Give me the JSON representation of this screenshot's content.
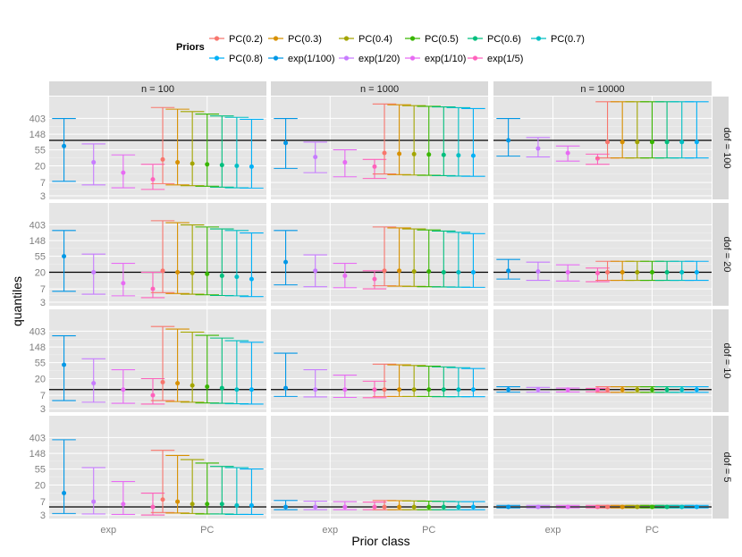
{
  "chart_data": {
    "type": "errorbar",
    "xlabel": "Prior class",
    "ylabel": "quantiles",
    "y_scale": "log",
    "ylim": [
      2.4,
      1600
    ],
    "y_ticks": [
      3,
      7,
      20,
      55,
      148,
      403
    ],
    "x_categories": [
      "exp",
      "PC"
    ],
    "col_facets": [
      "n = 100",
      "n = 1000",
      "n = 10000"
    ],
    "row_facets": [
      "dof = 100",
      "dof = 20",
      "dof = 10",
      "dof = 5"
    ],
    "true_values": [
      100,
      20,
      10,
      5
    ],
    "legend": {
      "title": "Priors",
      "entries": [
        {
          "label": "PC(0.2)",
          "color": "#F8766D"
        },
        {
          "label": "PC(0.3)",
          "color": "#D89000"
        },
        {
          "label": "PC(0.4)",
          "color": "#A3A500"
        },
        {
          "label": "PC(0.5)",
          "color": "#39B600"
        },
        {
          "label": "PC(0.6)",
          "color": "#00BF7D"
        },
        {
          "label": "PC(0.7)",
          "color": "#00BFC4"
        },
        {
          "label": "PC(0.8)",
          "color": "#00B0F6"
        },
        {
          "label": "exp(1/100)",
          "color": "#0097E6"
        },
        {
          "label": "exp(1/20)",
          "color": "#C77CFF"
        },
        {
          "label": "exp(1/10)",
          "color": "#E76BF3"
        },
        {
          "label": "exp(1/5)",
          "color": "#FF62BC"
        }
      ]
    },
    "series_order": [
      "exp(1/100)",
      "exp(1/20)",
      "exp(1/10)",
      "exp(1/5)",
      "PC(0.2)",
      "PC(0.3)",
      "PC(0.4)",
      "PC(0.5)",
      "PC(0.6)",
      "PC(0.7)",
      "PC(0.8)"
    ],
    "panels": [
      {
        "row": 0,
        "col": 0,
        "bars": [
          [
            7.5,
            70,
            400
          ],
          [
            6,
            25,
            80
          ],
          [
            5,
            13,
            40
          ],
          [
            4.5,
            8.5,
            22
          ],
          [
            6.5,
            30,
            800
          ],
          [
            6,
            25,
            720
          ],
          [
            5.7,
            23,
            620
          ],
          [
            5.5,
            22,
            530
          ],
          [
            5.2,
            21,
            470
          ],
          [
            5,
            20,
            430
          ],
          [
            4.9,
            19,
            380
          ]
        ]
      },
      {
        "row": 0,
        "col": 1,
        "bars": [
          [
            17,
            85,
            400
          ],
          [
            13,
            35,
            90
          ],
          [
            10,
            25,
            55
          ],
          [
            9,
            19,
            30
          ],
          [
            12,
            45,
            1000
          ],
          [
            11.5,
            43,
            950
          ],
          [
            11.2,
            42,
            900
          ],
          [
            11,
            41,
            860
          ],
          [
            10.8,
            40,
            830
          ],
          [
            10.5,
            39,
            790
          ],
          [
            10.3,
            38,
            750
          ]
        ]
      },
      {
        "row": 0,
        "col": 2,
        "bars": [
          [
            37,
            100,
            400
          ],
          [
            35,
            60,
            120
          ],
          [
            27,
            45,
            70
          ],
          [
            22,
            32,
            42
          ],
          [
            33,
            90,
            1150
          ],
          [
            33,
            90,
            1150
          ],
          [
            33,
            90,
            1150
          ],
          [
            33,
            90,
            1150
          ],
          [
            33,
            90,
            1150
          ],
          [
            33,
            90,
            1150
          ],
          [
            33,
            90,
            1150
          ]
        ]
      },
      {
        "row": 1,
        "col": 0,
        "bars": [
          [
            6,
            55,
            280
          ],
          [
            5,
            20,
            63
          ],
          [
            4.5,
            10,
            35
          ],
          [
            4,
            7,
            20
          ],
          [
            5.5,
            22,
            520
          ],
          [
            5.2,
            20,
            460
          ],
          [
            5,
            19,
            400
          ],
          [
            4.8,
            18,
            350
          ],
          [
            4.6,
            16,
            310
          ],
          [
            4.5,
            15,
            280
          ],
          [
            4.3,
            13,
            240
          ]
        ]
      },
      {
        "row": 1,
        "col": 1,
        "bars": [
          [
            9,
            38,
            280
          ],
          [
            8,
            22,
            60
          ],
          [
            7.5,
            16,
            35
          ],
          [
            7,
            13,
            22
          ],
          [
            8.5,
            22,
            350
          ],
          [
            8.3,
            22,
            330
          ],
          [
            8.2,
            21,
            310
          ],
          [
            8,
            21,
            290
          ],
          [
            7.9,
            20,
            270
          ],
          [
            7.8,
            20,
            250
          ],
          [
            7.7,
            20,
            230
          ]
        ]
      },
      {
        "row": 1,
        "col": 2,
        "bars": [
          [
            13,
            22,
            45
          ],
          [
            12,
            21,
            38
          ],
          [
            11.5,
            20,
            32
          ],
          [
            11,
            19,
            26
          ],
          [
            12,
            20,
            40
          ],
          [
            12,
            20,
            40
          ],
          [
            12,
            20,
            40
          ],
          [
            12,
            20,
            40
          ],
          [
            12,
            20,
            40
          ],
          [
            12,
            20,
            40
          ],
          [
            12,
            20,
            40
          ]
        ]
      },
      {
        "row": 2,
        "col": 0,
        "bars": [
          [
            5,
            48,
            300
          ],
          [
            4.5,
            15,
            70
          ],
          [
            4.2,
            10,
            35
          ],
          [
            4,
            7,
            20
          ],
          [
            5,
            16,
            540
          ],
          [
            4.7,
            15,
            460
          ],
          [
            4.5,
            13,
            380
          ],
          [
            4.3,
            12,
            310
          ],
          [
            4.2,
            11,
            260
          ],
          [
            4.1,
            10,
            220
          ],
          [
            4,
            10,
            200
          ]
        ]
      },
      {
        "row": 2,
        "col": 1,
        "bars": [
          [
            6.5,
            11,
            100
          ],
          [
            6.3,
            10,
            35
          ],
          [
            6.1,
            10,
            25
          ],
          [
            6,
            10,
            17
          ],
          [
            6.5,
            10,
            50
          ],
          [
            6.5,
            10,
            48
          ],
          [
            6.5,
            10,
            46
          ],
          [
            6.5,
            10,
            44
          ],
          [
            6.4,
            10,
            42
          ],
          [
            6.4,
            10,
            40
          ],
          [
            6.4,
            10,
            38
          ]
        ]
      },
      {
        "row": 2,
        "col": 2,
        "bars": [
          [
            8.5,
            10,
            12
          ],
          [
            8.5,
            10,
            11.5
          ],
          [
            8.6,
            10,
            11
          ],
          [
            8.7,
            10,
            10.8
          ],
          [
            8.4,
            10,
            12
          ],
          [
            8.4,
            10,
            12
          ],
          [
            8.4,
            10,
            12
          ],
          [
            8.4,
            10,
            12
          ],
          [
            8.4,
            10,
            12
          ],
          [
            8.4,
            10,
            12
          ],
          [
            8.4,
            10,
            12
          ]
        ]
      },
      {
        "row": 3,
        "col": 0,
        "bars": [
          [
            3.3,
            12,
            350
          ],
          [
            3.2,
            7,
            60
          ],
          [
            3.1,
            6,
            25
          ],
          [
            3,
            5,
            12
          ],
          [
            3.5,
            8,
            180
          ],
          [
            3.4,
            7,
            130
          ],
          [
            3.3,
            6,
            100
          ],
          [
            3.2,
            6,
            80
          ],
          [
            3.2,
            6,
            65
          ],
          [
            3.1,
            5.5,
            60
          ],
          [
            3.1,
            5.5,
            55
          ]
        ]
      },
      {
        "row": 3,
        "col": 1,
        "bars": [
          [
            4.2,
            5,
            7.5
          ],
          [
            4.2,
            5,
            7.2
          ],
          [
            4.2,
            5,
            7
          ],
          [
            4.2,
            5,
            6.8
          ],
          [
            4.2,
            5,
            7.5
          ],
          [
            4.2,
            5,
            7.4
          ],
          [
            4.2,
            5,
            7.3
          ],
          [
            4.2,
            5,
            7.2
          ],
          [
            4.2,
            5,
            7.1
          ],
          [
            4.2,
            5,
            7
          ],
          [
            4.2,
            5,
            7
          ]
        ]
      },
      {
        "row": 3,
        "col": 2,
        "bars": [
          [
            4.7,
            5,
            5.5
          ],
          [
            4.7,
            5,
            5.5
          ],
          [
            4.7,
            5,
            5.5
          ],
          [
            4.7,
            5,
            5.5
          ],
          [
            4.7,
            5,
            5.5
          ],
          [
            4.7,
            5,
            5.5
          ],
          [
            4.7,
            5,
            5.5
          ],
          [
            4.7,
            5,
            5.5
          ],
          [
            4.7,
            5,
            5.5
          ],
          [
            4.7,
            5,
            5.5
          ],
          [
            4.7,
            5,
            5.5
          ]
        ]
      }
    ]
  }
}
